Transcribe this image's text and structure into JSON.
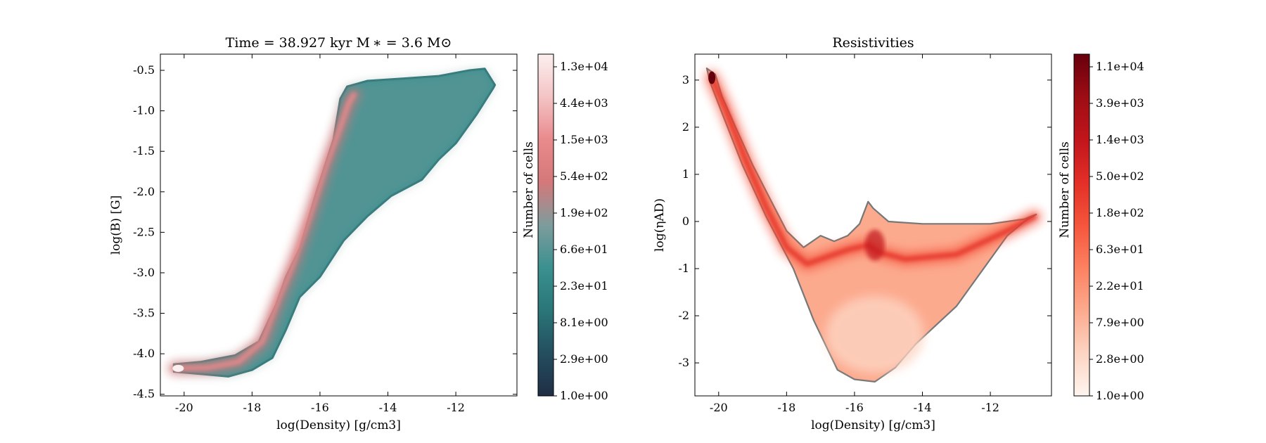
{
  "chart_data": [
    {
      "type": "heatmap",
      "title": "Time = 38.927 kyr    M ∗ = 3.6 M⊙",
      "xlabel": "log(Density) [g/cm3]",
      "ylabel": "log(B) [G]",
      "xlim": [
        -20.7,
        -10.2
      ],
      "ylim": [
        -4.52,
        -0.3
      ],
      "x_ticks": [
        -20,
        -18,
        -16,
        -14,
        -12
      ],
      "x_tick_labels": [
        "-20",
        "-18",
        "-16",
        "-14",
        "-12"
      ],
      "y_ticks": [
        -0.5,
        -1.0,
        -1.5,
        -2.0,
        -2.5,
        -3.0,
        -3.5,
        -4.0,
        -4.5
      ],
      "y_tick_labels": [
        "-0.5",
        "-1.0",
        "-1.5",
        "-2.0",
        "-2.5",
        "-3.0",
        "-3.5",
        "-4.0",
        "-4.5"
      ],
      "colorbar": {
        "label": "Number of cells",
        "scale": "log",
        "tick_labels": [
          "1.0e+00",
          "2.9e+00",
          "8.1e+00",
          "2.3e+01",
          "6.6e+01",
          "1.9e+02",
          "5.4e+02",
          "1.5e+03",
          "4.4e+03",
          "1.3e+04"
        ],
        "colormap": [
          "#1f2e45",
          "#244e5e",
          "#2a7678",
          "#3b9090",
          "#7e9c9c",
          "#d4787a",
          "#e98a8c",
          "#f4c4c5",
          "#fcefef"
        ]
      },
      "distribution": {
        "upper_envelope": [
          [
            -20.3,
            -4.13
          ],
          [
            -19.5,
            -4.1
          ],
          [
            -18.5,
            -4.02
          ],
          [
            -17.8,
            -3.85
          ],
          [
            -17.3,
            -3.4
          ],
          [
            -17.0,
            -3.05
          ],
          [
            -16.6,
            -2.7
          ],
          [
            -16.1,
            -2.0
          ],
          [
            -15.6,
            -1.35
          ],
          [
            -15.4,
            -0.85
          ],
          [
            -15.2,
            -0.7
          ],
          [
            -14.6,
            -0.63
          ],
          [
            -13.5,
            -0.6
          ],
          [
            -12.5,
            -0.57
          ],
          [
            -11.6,
            -0.5
          ],
          [
            -11.15,
            -0.48
          ],
          [
            -10.85,
            -0.68
          ]
        ],
        "lower_envelope": [
          [
            -20.3,
            -4.22
          ],
          [
            -19.5,
            -4.25
          ],
          [
            -18.7,
            -4.28
          ],
          [
            -18.0,
            -4.2
          ],
          [
            -17.4,
            -4.05
          ],
          [
            -17.0,
            -3.7
          ],
          [
            -16.6,
            -3.3
          ],
          [
            -16.0,
            -3.05
          ],
          [
            -15.3,
            -2.6
          ],
          [
            -14.6,
            -2.3
          ],
          [
            -13.9,
            -2.05
          ],
          [
            -13.0,
            -1.85
          ],
          [
            -12.5,
            -1.6
          ],
          [
            -12.0,
            -1.4
          ],
          [
            -11.4,
            -1.05
          ],
          [
            -10.9,
            -0.72
          ]
        ],
        "ridge": [
          [
            -20.3,
            -4.18
          ],
          [
            -19.3,
            -4.17
          ],
          [
            -18.4,
            -4.1
          ],
          [
            -17.7,
            -3.85
          ],
          [
            -17.2,
            -3.3
          ],
          [
            -16.8,
            -2.9
          ],
          [
            -16.3,
            -2.3
          ],
          [
            -15.8,
            -1.65
          ],
          [
            -15.4,
            -1.2
          ],
          [
            -15.15,
            -0.9
          ],
          [
            -15.0,
            -0.8
          ]
        ]
      }
    },
    {
      "type": "heatmap",
      "title": "Resistivities",
      "xlabel": "log(Density) [g/cm3]",
      "ylabel": "log(ηAD)",
      "xlim": [
        -20.7,
        -10.2
      ],
      "ylim": [
        -3.7,
        3.55
      ],
      "x_ticks": [
        -20,
        -18,
        -16,
        -14,
        -12
      ],
      "x_tick_labels": [
        "-20",
        "-18",
        "-16",
        "-14",
        "-12"
      ],
      "y_ticks": [
        3,
        2,
        1,
        0,
        -1,
        -2,
        -3
      ],
      "y_tick_labels": [
        "3",
        "2",
        "1",
        "0",
        "-1",
        "-2",
        "-3"
      ],
      "colorbar": {
        "label": "Number of cells",
        "scale": "log",
        "tick_labels": [
          "1.0e+00",
          "2.8e+00",
          "7.9e+00",
          "2.2e+01",
          "6.3e+01",
          "1.8e+02",
          "5.0e+02",
          "1.4e+03",
          "3.9e+03",
          "1.1e+04"
        ],
        "colormap": [
          "#fff5f0",
          "#fdd4c2",
          "#fcaa8e",
          "#fc8161",
          "#f5553c",
          "#e32f27",
          "#c1151b",
          "#9d0d14",
          "#67000d"
        ]
      },
      "distribution": {
        "outline": [
          [
            -20.35,
            3.25
          ],
          [
            -20.1,
            3.12
          ],
          [
            -19.9,
            2.65
          ],
          [
            -19.5,
            2.0
          ],
          [
            -19.0,
            1.2
          ],
          [
            -18.5,
            0.5
          ],
          [
            -18.0,
            -0.2
          ],
          [
            -17.5,
            -0.55
          ],
          [
            -17.0,
            -0.3
          ],
          [
            -16.6,
            -0.42
          ],
          [
            -16.2,
            -0.3
          ],
          [
            -15.85,
            -0.05
          ],
          [
            -15.6,
            0.42
          ],
          [
            -15.45,
            0.28
          ],
          [
            -15.0,
            0.0
          ],
          [
            -14.0,
            -0.05
          ],
          [
            -12.0,
            -0.05
          ],
          [
            -11.0,
            0.05
          ],
          [
            -10.65,
            0.15
          ],
          [
            -11.0,
            0.0
          ],
          [
            -11.5,
            -0.3
          ],
          [
            -12.4,
            -1.2
          ],
          [
            -13.0,
            -1.8
          ],
          [
            -13.6,
            -2.2
          ],
          [
            -14.2,
            -2.6
          ],
          [
            -14.8,
            -3.1
          ],
          [
            -15.4,
            -3.4
          ],
          [
            -16.0,
            -3.35
          ],
          [
            -16.5,
            -3.15
          ],
          [
            -17.2,
            -2.1
          ],
          [
            -17.8,
            -1.0
          ],
          [
            -18.6,
            0.1
          ],
          [
            -19.3,
            1.2
          ],
          [
            -19.9,
            2.3
          ],
          [
            -20.25,
            2.95
          ],
          [
            -20.35,
            3.25
          ]
        ],
        "ridge": [
          [
            -20.2,
            3.05
          ],
          [
            -19.8,
            2.4
          ],
          [
            -19.2,
            1.3
          ],
          [
            -18.6,
            0.3
          ],
          [
            -18.0,
            -0.55
          ],
          [
            -17.4,
            -0.9
          ],
          [
            -16.8,
            -0.75
          ],
          [
            -16.2,
            -0.6
          ],
          [
            -15.6,
            -0.5
          ],
          [
            -15.3,
            -0.65
          ],
          [
            -14.5,
            -0.8
          ],
          [
            -13.0,
            -0.7
          ],
          [
            -11.5,
            -0.2
          ],
          [
            -10.7,
            0.1
          ]
        ]
      }
    }
  ]
}
